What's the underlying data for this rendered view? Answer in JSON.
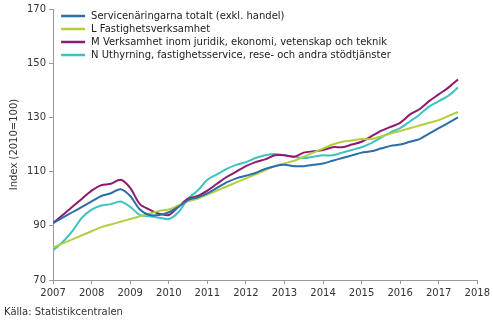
{
  "chart_data": {
    "type": "line",
    "y_label": "Index (2010=100)",
    "source": "Källa: Statistikcentralen",
    "x": [
      2007,
      2007.25,
      2007.5,
      2007.75,
      2008,
      2008.25,
      2008.5,
      2008.75,
      2009,
      2009.25,
      2009.5,
      2009.75,
      2010,
      2010.25,
      2010.5,
      2010.75,
      2011,
      2011.25,
      2011.5,
      2011.75,
      2012,
      2012.25,
      2012.5,
      2012.75,
      2013,
      2013.25,
      2013.5,
      2013.75,
      2014,
      2014.25,
      2014.5,
      2014.75,
      2015,
      2015.25,
      2015.5,
      2015.75,
      2016,
      2016.25,
      2016.5,
      2016.75,
      2017,
      2017.25,
      2017.5
    ],
    "series": [
      {
        "name": "Servicenäringarna totalt (exkl. handel)",
        "color": "#2a6ea6",
        "values": [
          91,
          93,
          95,
          97,
          99,
          101,
          102,
          103.5,
          101,
          96,
          94,
          94,
          95,
          97,
          99.5,
          100.5,
          102,
          104,
          106,
          107.5,
          108.5,
          109.5,
          111,
          112,
          112.5,
          112,
          112,
          112.5,
          113,
          114,
          115,
          116,
          117,
          117.5,
          118.5,
          119.5,
          120,
          121,
          122,
          124,
          126,
          128,
          130
        ]
      },
      {
        "name": "L Fastighetsverksamhet",
        "color": "#b5cf3c",
        "values": [
          82,
          83.5,
          85,
          86.5,
          88,
          89.5,
          90.5,
          91.5,
          92.5,
          93.5,
          94.5,
          95.5,
          96,
          97.5,
          99,
          100,
          101.5,
          103,
          104.5,
          106,
          107.5,
          109,
          110.5,
          112,
          113,
          114,
          115.5,
          117,
          118.5,
          120,
          121,
          121.5,
          122,
          122,
          123,
          124,
          125,
          126,
          127,
          128,
          129,
          130.5,
          132
        ]
      },
      {
        "name": "M Verksamhet inom juridik, ekonomi, vetenskap och teknik",
        "color": "#8e1a6f",
        "values": [
          91,
          94,
          97,
          100,
          103,
          105,
          105.5,
          107,
          104,
          98,
          96,
          94.5,
          94,
          97,
          100,
          101,
          103,
          105.5,
          108,
          110,
          112,
          113.5,
          114.5,
          116,
          116,
          115.5,
          117,
          117.5,
          118,
          119,
          119,
          120,
          121,
          123,
          125,
          126.5,
          128,
          131,
          133,
          136,
          138.5,
          141,
          144
        ]
      },
      {
        "name": "N Uthyrning, fastighetsservice, rese- och andra stödtjänster",
        "color": "#3cc3c0",
        "values": [
          81,
          84,
          88,
          93,
          96,
          97.5,
          98,
          99,
          97,
          94,
          93.5,
          93,
          92.5,
          95,
          100,
          103,
          107,
          109,
          111,
          112.5,
          113.5,
          115,
          116,
          116.5,
          116,
          115.5,
          115,
          115.5,
          116,
          116,
          117,
          118,
          119,
          120.5,
          122.5,
          124.5,
          126,
          128.5,
          131,
          134,
          136,
          138,
          141
        ]
      }
    ],
    "xlim": [
      2007,
      2018
    ],
    "xticks": [
      2007,
      2008,
      2009,
      2010,
      2011,
      2012,
      2013,
      2014,
      2015,
      2016,
      2017,
      2018
    ],
    "ylim": [
      70,
      170
    ],
    "yticks": [
      70,
      90,
      110,
      130,
      150,
      170
    ],
    "grid": false,
    "legend": "upper left"
  }
}
